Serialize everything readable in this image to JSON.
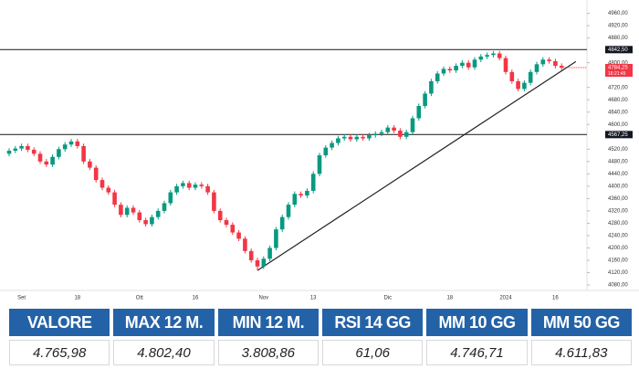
{
  "chart_data": {
    "type": "candlestick",
    "categories": [
      null,
      null,
      "Set",
      null,
      null,
      null,
      null,
      null,
      null,
      null,
      null,
      "18",
      null,
      null,
      null,
      null,
      null,
      null,
      null,
      null,
      null,
      "Ott",
      null,
      null,
      null,
      null,
      null,
      null,
      null,
      null,
      "16",
      null,
      null,
      null,
      null,
      null,
      null,
      null,
      null,
      null,
      null,
      "Nov",
      null,
      null,
      null,
      null,
      null,
      null,
      null,
      "13",
      null,
      null,
      null,
      null,
      null,
      null,
      null,
      null,
      null,
      null,
      null,
      "Dic",
      null,
      null,
      null,
      null,
      null,
      null,
      null,
      null,
      null,
      "18",
      null,
      null,
      null,
      null,
      null,
      null,
      null,
      null,
      "2024",
      null,
      null,
      null,
      null,
      null,
      null,
      null,
      "16",
      null
    ],
    "open": [
      4505,
      4515,
      4522,
      4530,
      4518,
      4505,
      4480,
      4470,
      4495,
      4520,
      4535,
      4545,
      4530,
      4480,
      4460,
      4420,
      4395,
      4380,
      4340,
      4307,
      4330,
      4315,
      4290,
      4277,
      4300,
      4320,
      4345,
      4380,
      4400,
      4410,
      4395,
      4405,
      4400,
      4380,
      4320,
      4290,
      4275,
      4250,
      4230,
      4190,
      4160,
      4140,
      4165,
      4200,
      4260,
      4300,
      4340,
      4375,
      4370,
      4385,
      4440,
      4500,
      4525,
      4540,
      4555,
      4560,
      4552,
      4560,
      4555,
      4565,
      4570,
      4575,
      4590,
      4580,
      4560,
      4575,
      4620,
      4660,
      4700,
      4740,
      4765,
      4780,
      4775,
      4790,
      4800,
      4785,
      4810,
      4820,
      4825,
      4830,
      4815,
      4770,
      4740,
      4715,
      4735,
      4770,
      4795,
      4810,
      4805,
      4790
    ],
    "high": [
      4523,
      4530,
      4538,
      4538,
      4526,
      4513,
      4488,
      4503,
      4528,
      4543,
      4553,
      4553,
      4538,
      4488,
      4468,
      4428,
      4403,
      4388,
      4348,
      4338,
      4338,
      4323,
      4298,
      4308,
      4328,
      4353,
      4388,
      4408,
      4418,
      4418,
      4413,
      4413,
      4408,
      4388,
      4328,
      4298,
      4283,
      4258,
      4238,
      4198,
      4168,
      4173,
      4208,
      4268,
      4308,
      4348,
      4383,
      4383,
      4393,
      4448,
      4508,
      4533,
      4548,
      4563,
      4568,
      4568,
      4568,
      4568,
      4573,
      4578,
      4583,
      4598,
      4598,
      4588,
      4583,
      4628,
      4668,
      4708,
      4748,
      4773,
      4788,
      4788,
      4798,
      4808,
      4808,
      4818,
      4828,
      4833,
      4838,
      4838,
      4823,
      4778,
      4748,
      4743,
      4778,
      4803,
      4818,
      4818,
      4813,
      4798
    ],
    "low": [
      4497,
      4507,
      4514,
      4510,
      4497,
      4472,
      4462,
      4462,
      4487,
      4512,
      4527,
      4522,
      4472,
      4452,
      4412,
      4387,
      4372,
      4332,
      4299,
      4299,
      4307,
      4282,
      4269,
      4269,
      4292,
      4312,
      4337,
      4372,
      4392,
      4387,
      4387,
      4392,
      4372,
      4312,
      4282,
      4267,
      4242,
      4222,
      4182,
      4152,
      4127,
      4132,
      4157,
      4192,
      4252,
      4292,
      4332,
      4362,
      4362,
      4377,
      4432,
      4492,
      4517,
      4532,
      4547,
      4544,
      4544,
      4547,
      4547,
      4557,
      4562,
      4567,
      4572,
      4552,
      4552,
      4567,
      4612,
      4652,
      4692,
      4732,
      4757,
      4767,
      4767,
      4782,
      4777,
      4777,
      4802,
      4812,
      4817,
      4807,
      4762,
      4732,
      4707,
      4707,
      4727,
      4762,
      4787,
      4797,
      4782,
      4776
    ],
    "close": [
      4515,
      4522,
      4530,
      4518,
      4505,
      4480,
      4470,
      4495,
      4520,
      4535,
      4545,
      4530,
      4480,
      4460,
      4420,
      4395,
      4380,
      4340,
      4307,
      4330,
      4315,
      4290,
      4277,
      4300,
      4320,
      4345,
      4380,
      4400,
      4410,
      4395,
      4405,
      4400,
      4380,
      4320,
      4290,
      4275,
      4250,
      4230,
      4190,
      4160,
      4140,
      4165,
      4200,
      4260,
      4300,
      4340,
      4375,
      4370,
      4385,
      4440,
      4500,
      4525,
      4540,
      4555,
      4560,
      4552,
      4560,
      4555,
      4565,
      4570,
      4575,
      4590,
      4580,
      4560,
      4575,
      4620,
      4660,
      4700,
      4740,
      4765,
      4780,
      4775,
      4790,
      4800,
      4785,
      4810,
      4820,
      4825,
      4830,
      4815,
      4770,
      4740,
      4715,
      4735,
      4770,
      4795,
      4810,
      4805,
      4790,
      4784.25
    ],
    "up_color": "#089981",
    "down_color": "#f23645",
    "ylim": [
      4080,
      4960
    ],
    "yticks": [
      {
        "value": 4080,
        "label": "4080,00"
      },
      {
        "value": 4120,
        "label": "4120,00"
      },
      {
        "value": 4160,
        "label": "4160,00"
      },
      {
        "value": 4200,
        "label": "4200,00"
      },
      {
        "value": 4240,
        "label": "4240,00"
      },
      {
        "value": 4280,
        "label": "4280,00"
      },
      {
        "value": 4320,
        "label": "4320,00"
      },
      {
        "value": 4360,
        "label": "4360,00"
      },
      {
        "value": 4400,
        "label": "4400,00"
      },
      {
        "value": 4440,
        "label": "4440,00"
      },
      {
        "value": 4480,
        "label": "4480,00"
      },
      {
        "value": 4520,
        "label": "4520,00"
      },
      {
        "value": 4600,
        "label": "4600,00"
      },
      {
        "value": 4640,
        "label": "4640,00"
      },
      {
        "value": 4680,
        "label": "4680,00"
      },
      {
        "value": 4720,
        "label": "4720,00"
      },
      {
        "value": 4800,
        "label": "4800,00"
      },
      {
        "value": 4880,
        "label": "4880,00"
      },
      {
        "value": 4920,
        "label": "4920,00"
      },
      {
        "value": 4960,
        "label": "4960,00"
      }
    ],
    "hlines": [
      {
        "value": 4842.5,
        "label": "4842,50"
      },
      {
        "value": 4567.25,
        "label": "4567,25"
      }
    ],
    "price_tag": {
      "value": 4784.25,
      "label": "4784,25",
      "time": "16:21:45"
    },
    "trendline": {
      "x": [
        40,
        91.3
      ],
      "y": [
        4127,
        4804
      ]
    }
  },
  "table": {
    "headers": [
      "VALORE",
      "MAX 12 M.",
      "MIN 12 M.",
      "RSI 14 GG",
      "MM 10 GG",
      "MM 50 GG"
    ],
    "rows": [
      [
        "4.765,98",
        "4.802,40",
        "3.808,86",
        "61,06",
        "4.746,71",
        "4.611,83"
      ]
    ]
  }
}
